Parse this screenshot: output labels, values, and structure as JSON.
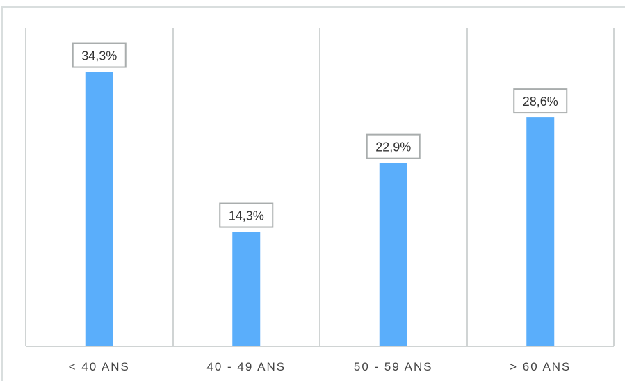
{
  "chart_data": {
    "type": "bar",
    "categories": [
      "< 40 ANS",
      "40 - 49 ANS",
      "50 - 59 ANS",
      "> 60 ANS"
    ],
    "values": [
      34.3,
      14.3,
      22.9,
      28.6
    ],
    "data_labels": [
      "34,3%",
      "14,3%",
      "22,9%",
      "28,6%"
    ],
    "unit": "%",
    "ylim": [
      0,
      40
    ],
    "grid": "vertical separators",
    "legend": "none",
    "bar_color": "#5aaefb",
    "label_border_color": "#a9adad",
    "axis_color": "#d0d4d4"
  }
}
